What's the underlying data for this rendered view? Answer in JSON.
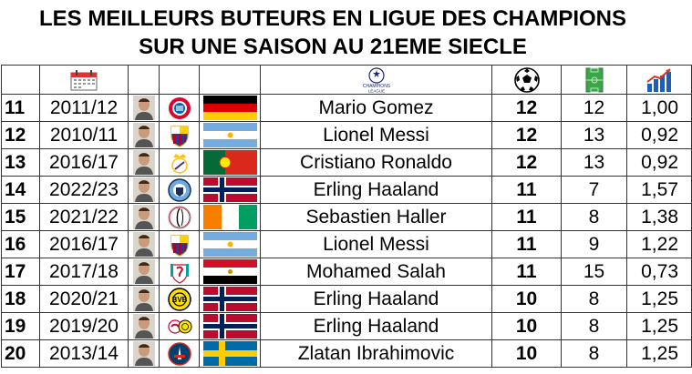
{
  "title": {
    "line1": "LES MEILLEURS BUTEURS EN LIGUE DES CHAMPIONS",
    "line2": "SUR UNE SAISON AU 21EME SIECLE"
  },
  "header": {
    "icons": [
      "calendar-icon",
      "champions-league-logo",
      "football-icon",
      "pitch-icon",
      "bar-chart-icon"
    ],
    "cl_logo_text1": "CHAMPIONS",
    "cl_logo_text2": "LEAGUE"
  },
  "rows": [
    {
      "rank": "11",
      "season": "2011/12",
      "club": "bayern",
      "flag": "germany",
      "name": "Mario Gomez",
      "goals": "12",
      "matches": "12",
      "ratio": "1,00"
    },
    {
      "rank": "12",
      "season": "2010/11",
      "club": "barcelona",
      "flag": "argentina",
      "name": "Lionel Messi",
      "goals": "12",
      "matches": "13",
      "ratio": "0,92"
    },
    {
      "rank": "13",
      "season": "2016/17",
      "club": "real-madrid",
      "flag": "portugal",
      "name": "Cristiano Ronaldo",
      "goals": "12",
      "matches": "13",
      "ratio": "0,92"
    },
    {
      "rank": "14",
      "season": "2022/23",
      "club": "man-city",
      "flag": "norway",
      "name": "Erling Haaland",
      "goals": "11",
      "matches": "7",
      "ratio": "1,57"
    },
    {
      "rank": "15",
      "season": "2021/22",
      "club": "ajax",
      "flag": "ivory-coast",
      "name": "Sebastien Haller",
      "goals": "11",
      "matches": "8",
      "ratio": "1,38"
    },
    {
      "rank": "16",
      "season": "2016/17",
      "club": "barcelona",
      "flag": "argentina",
      "name": "Lionel Messi",
      "goals": "11",
      "matches": "9",
      "ratio": "1,22"
    },
    {
      "rank": "17",
      "season": "2017/18",
      "club": "liverpool",
      "flag": "egypt",
      "name": "Mohamed Salah",
      "goals": "11",
      "matches": "15",
      "ratio": "0,73"
    },
    {
      "rank": "18",
      "season": "2020/21",
      "club": "dortmund",
      "flag": "norway",
      "name": "Erling Haaland",
      "goals": "10",
      "matches": "8",
      "ratio": "1,25"
    },
    {
      "rank": "19",
      "season": "2019/20",
      "club": "salzburg-dortmund",
      "flag": "norway",
      "name": "Erling Haaland",
      "goals": "10",
      "matches": "8",
      "ratio": "1,25"
    },
    {
      "rank": "20",
      "season": "2013/14",
      "club": "psg",
      "flag": "sweden",
      "name": "Zlatan Ibrahimovic",
      "goals": "10",
      "matches": "8",
      "ratio": "1,25"
    }
  ],
  "colors": {
    "bayern": "#dc052d",
    "barcelona-blue": "#004d98",
    "barcelona-red": "#a50044",
    "man-city": "#6cabdd",
    "liverpool": "#c8102e",
    "dortmund": "#fde100",
    "psg": "#004170",
    "real-gold": "#febe10",
    "ajax": "#d2122e",
    "salzburg": "#d50032"
  }
}
